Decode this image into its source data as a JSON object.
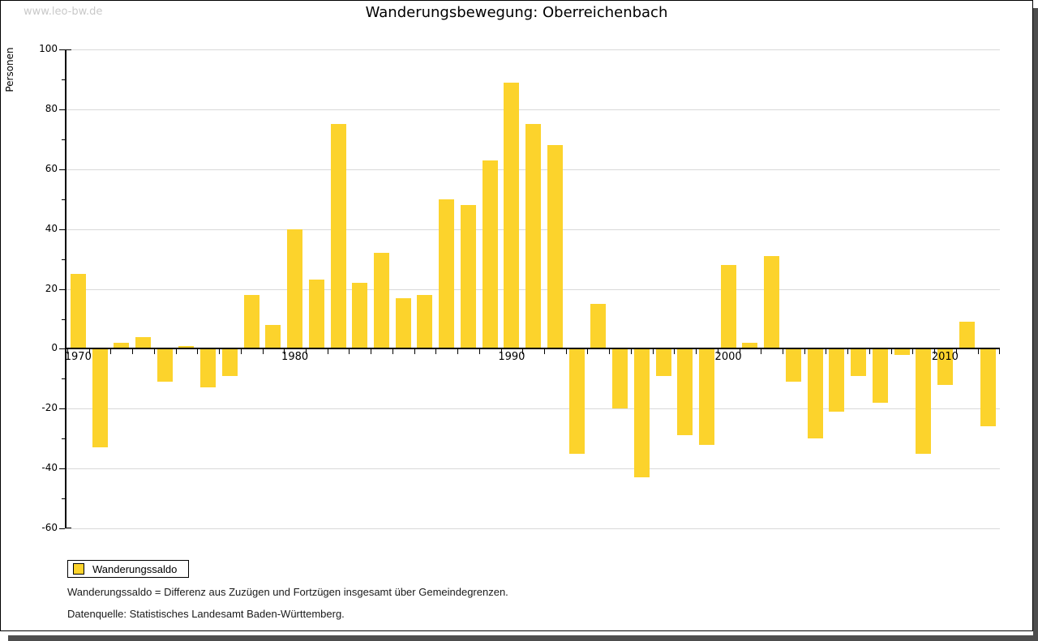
{
  "page": {
    "watermark": "www.leo-bw.de",
    "title": "Wanderungsbewegung: Oberreichenbach"
  },
  "chart_data": {
    "type": "bar",
    "title": "Wanderungsbewegung: Oberreichenbach",
    "ylabel": "Personen",
    "series_name": "Wanderungssaldo",
    "categories": [
      1970,
      1971,
      1972,
      1973,
      1974,
      1975,
      1976,
      1977,
      1978,
      1979,
      1980,
      1981,
      1982,
      1983,
      1984,
      1985,
      1986,
      1987,
      1988,
      1989,
      1990,
      1991,
      1992,
      1993,
      1994,
      1995,
      1996,
      1997,
      1998,
      1999,
      2000,
      2001,
      2002,
      2003,
      2004,
      2005,
      2006,
      2007,
      2008,
      2009,
      2010,
      2011,
      2012
    ],
    "values": [
      25,
      -33,
      2,
      4,
      -11,
      1,
      -13,
      -9,
      18,
      8,
      40,
      23,
      75,
      22,
      32,
      17,
      18,
      50,
      48,
      63,
      89,
      75,
      68,
      -35,
      15,
      -20,
      -43,
      -9,
      -29,
      -32,
      28,
      2,
      31,
      -11,
      -30,
      -21,
      -9,
      -18,
      -2,
      -35,
      -12,
      9,
      -26
    ],
    "ylim": [
      -60,
      100
    ],
    "ytick_step": 20,
    "yticks": [
      100,
      80,
      60,
      40,
      20,
      0,
      -20,
      -40,
      -60
    ],
    "xticks_labeled": [
      1970,
      1980,
      1990,
      2000,
      2010
    ],
    "grid": true,
    "legend_position": "bottom-left",
    "bar_color": "#fcd32c",
    "grid_color": "#d9d9d9",
    "axis_color": "#000000"
  },
  "footnotes": {
    "line1": "Wanderungssaldo = Differenz aus Zuzügen und Fortzügen insgesamt über Gemeindegrenzen.",
    "line2": "Datenquelle: Statistisches Landesamt Baden-Württemberg."
  }
}
